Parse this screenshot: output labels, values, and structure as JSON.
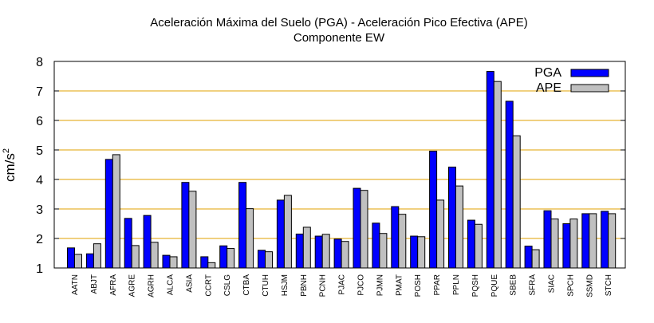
{
  "chart_data": {
    "type": "bar",
    "title": "Aceleración Máxima del Suelo (PGA) -  Aceleración Pico Efectiva (APE)",
    "subtitle": "Componente EW",
    "ylabel_base": "cm/s",
    "ylabel_exp": "2",
    "xlabel": "",
    "ylim": [
      1,
      8
    ],
    "yticks": [
      1,
      2,
      3,
      4,
      5,
      6,
      7,
      8
    ],
    "grid": "horizontal",
    "legend_position": "top-right",
    "categories": [
      "AATN",
      "ABJT",
      "AFRA",
      "AGRE",
      "AGRH",
      "ALCA",
      "ASIA",
      "CCRT",
      "CSLG",
      "CTBA",
      "CTUH",
      "HSJM",
      "PBNH",
      "PCNH",
      "PJAC",
      "PJCO",
      "PJMN",
      "PMAT",
      "POSH",
      "PPAR",
      "PPLN",
      "PQSH",
      "PQUE",
      "SBEB",
      "SFRA",
      "SIAC",
      "SPCH",
      "SSMD",
      "STCH"
    ],
    "series": [
      {
        "name": "PGA",
        "color": "#0000ff",
        "values": [
          1.68,
          1.48,
          4.68,
          2.68,
          2.78,
          1.43,
          3.9,
          1.38,
          1.75,
          3.9,
          1.6,
          3.3,
          2.15,
          2.08,
          1.98,
          3.7,
          2.52,
          3.08,
          2.08,
          4.96,
          4.42,
          2.62,
          7.66,
          6.65,
          1.74,
          2.94,
          2.5,
          2.84,
          2.92
        ]
      },
      {
        "name": "APE",
        "color": "#c0c0c0",
        "values": [
          1.46,
          1.82,
          4.84,
          1.76,
          1.87,
          1.38,
          3.6,
          1.18,
          1.66,
          3.01,
          1.55,
          3.46,
          2.38,
          2.14,
          1.9,
          3.63,
          2.17,
          2.82,
          2.06,
          3.3,
          3.78,
          2.48,
          7.32,
          5.48,
          1.62,
          2.66,
          2.66,
          2.84,
          2.84
        ]
      }
    ],
    "colors": {
      "grid": "#e1a000",
      "axis": "#000000"
    }
  }
}
